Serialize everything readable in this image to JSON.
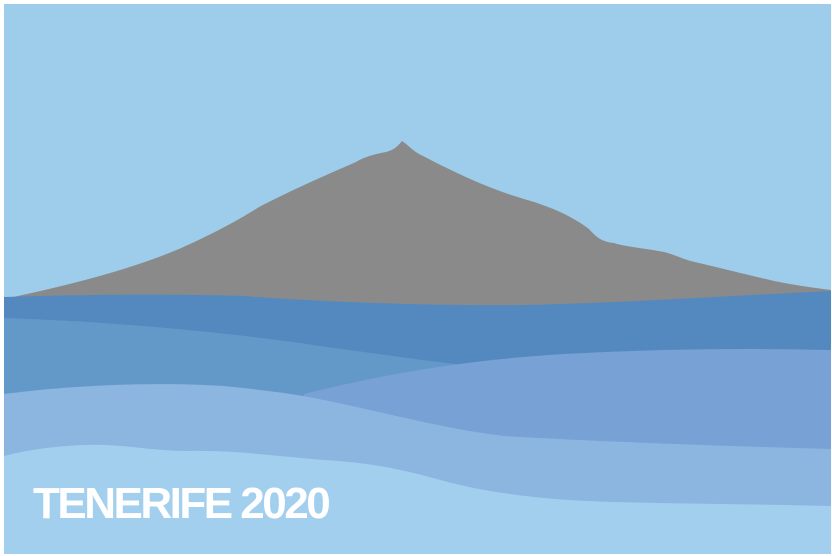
{
  "poster": {
    "caption": "TENERIFE 2020"
  },
  "colors": {
    "sky": "#9dcdea",
    "mountain": "#8a8a8a",
    "sea_far": "#5489bf",
    "sea_band_left": "#6399c8",
    "sea_band_right": "#78a1d6",
    "sea_mid": "#8cb6e0",
    "sea_near": "#a3cfee",
    "caption_text": "#ffffff"
  }
}
